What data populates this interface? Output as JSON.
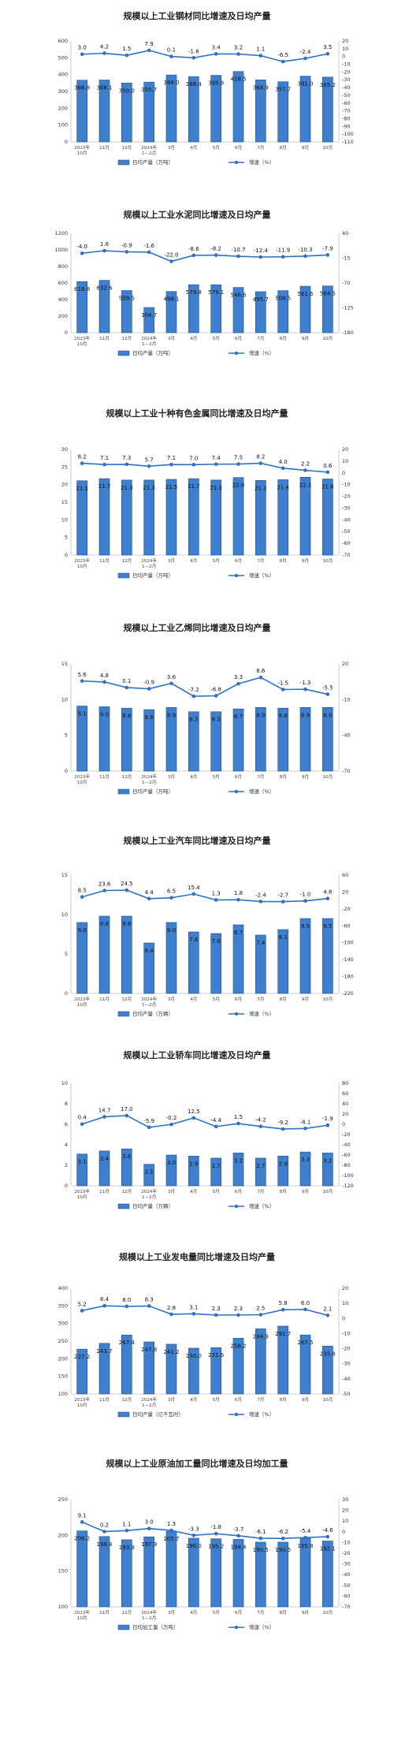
{
  "colors": {
    "bar_fill": "#3f7fcf",
    "bar_stroke": "#1a4f8f",
    "line": "#2f72c4",
    "axis": "#bfbfbf"
  },
  "categories": [
    "2023年\n10月",
    "11月",
    "12月",
    "2024年\n1—2月",
    "3月",
    "4月",
    "5月",
    "6月",
    "7月",
    "8月",
    "9月",
    "10月"
  ],
  "chart_data": [
    {
      "type": "bar",
      "title": "规模以上工业钢材同比增速及日均产量",
      "categories": [
        "2023年\n10月",
        "11月",
        "12月",
        "2024年\n1—2月",
        "3月",
        "4月",
        "5月",
        "6月",
        "7月",
        "8月",
        "9月",
        "10月"
      ],
      "series": [
        {
          "name": "日均产量（万吨）",
          "type": "bar",
          "axis": "left",
          "values": [
            366.8,
            368.1,
            350.0,
            355.7,
            398.0,
            388.4,
            395.8,
            418.5,
            368.9,
            357.7,
            391.0,
            385.2
          ]
        },
        {
          "name": "增速（%）",
          "type": "line",
          "axis": "right",
          "values": [
            3.0,
            4.2,
            1.5,
            7.9,
            0.1,
            -1.6,
            3.4,
            3.2,
            1.1,
            -6.5,
            -2.4,
            3.5
          ]
        }
      ],
      "left_ticks": [
        0,
        100,
        200,
        300,
        400,
        500,
        600
      ],
      "right_ticks": [
        20,
        10,
        0,
        -10,
        -20,
        -30,
        -40,
        -50,
        -60,
        -70,
        -80,
        -90,
        -100,
        -110
      ]
    },
    {
      "type": "bar",
      "title": "规模以上工业水泥同比增速及日均产量",
      "categories": [
        "2023年\n10月",
        "11月",
        "12月",
        "2024年\n1—2月",
        "3月",
        "4月",
        "5月",
        "6月",
        "7月",
        "8月",
        "9月",
        "10月"
      ],
      "series": [
        {
          "name": "日均产量（万吨）",
          "type": "bar",
          "axis": "left",
          "values": [
            616.8,
            632.6,
            509.5,
            304.7,
            498.1,
            579.8,
            579.1,
            546.6,
            495.7,
            508.5,
            561.6,
            564.5
          ]
        },
        {
          "name": "增速（%）",
          "type": "line",
          "axis": "right",
          "values": [
            -4.0,
            1.6,
            -0.9,
            -1.6,
            -22.0,
            -8.6,
            -8.2,
            -10.7,
            -12.4,
            -11.9,
            -10.3,
            -7.9
          ]
        }
      ],
      "left_ticks": [
        0,
        200,
        400,
        600,
        800,
        1000,
        1200
      ],
      "right_ticks": [
        40,
        -15,
        -70,
        -125,
        -180
      ]
    },
    {
      "type": "bar",
      "title": "规模以上工业十种有色金属同比增速及日均产量",
      "categories": [
        "2023年\n10月",
        "11月",
        "12月",
        "2024年\n1—2月",
        "3月",
        "4月",
        "5月",
        "6月",
        "7月",
        "8月",
        "9月",
        "10月"
      ],
      "series": [
        {
          "name": "日均产量（万吨）",
          "type": "bar",
          "axis": "left",
          "values": [
            21.1,
            21.7,
            21.3,
            21.3,
            21.5,
            21.7,
            21.3,
            22.0,
            21.2,
            21.4,
            22.1,
            21.6
          ]
        },
        {
          "name": "增速（%）",
          "type": "line",
          "axis": "right",
          "values": [
            8.2,
            7.1,
            7.3,
            5.7,
            7.1,
            7.0,
            7.4,
            7.5,
            8.2,
            4.0,
            2.2,
            0.6
          ]
        }
      ],
      "left_ticks": [
        0,
        5,
        10,
        15,
        20,
        25,
        30
      ],
      "right_ticks": [
        20,
        10,
        0,
        -10,
        -20,
        -30,
        -40,
        -50,
        -60,
        -70
      ]
    },
    {
      "type": "bar",
      "title": "规模以上工业乙烯同比增速及日均产量",
      "categories": [
        "2023年\n10月",
        "11月",
        "12月",
        "2024年\n1—2月",
        "3月",
        "4月",
        "5月",
        "6月",
        "7月",
        "8月",
        "9月",
        "10月"
      ],
      "series": [
        {
          "name": "日均产量（万吨）",
          "type": "bar",
          "axis": "left",
          "values": [
            9.1,
            9.0,
            8.8,
            8.6,
            8.9,
            8.3,
            8.3,
            8.7,
            8.9,
            8.8,
            8.9,
            8.9
          ]
        },
        {
          "name": "增速（%）",
          "type": "line",
          "axis": "right",
          "values": [
            5.6,
            4.8,
            0.1,
            -0.9,
            3.6,
            -7.2,
            -6.8,
            3.3,
            8.6,
            -1.5,
            -1.3,
            -5.5
          ]
        }
      ],
      "left_ticks": [
        0,
        5,
        10,
        15
      ],
      "right_ticks": [
        20,
        -10,
        -40,
        -70
      ]
    },
    {
      "type": "bar",
      "title": "规模以上工业汽车同比增速及日均产量",
      "categories": [
        "2023年\n10月",
        "11月",
        "12月",
        "2024年\n1—2月",
        "3月",
        "4月",
        "5月",
        "6月",
        "7月",
        "8月",
        "9月",
        "10月"
      ],
      "series": [
        {
          "name": "日均产量（万辆）",
          "type": "bar",
          "axis": "left",
          "values": [
            9.0,
            9.8,
            9.8,
            6.4,
            9.0,
            7.8,
            7.6,
            8.7,
            7.4,
            8.1,
            9.5,
            9.5
          ]
        },
        {
          "name": "增速（%）",
          "type": "line",
          "axis": "right",
          "values": [
            8.5,
            23.6,
            24.5,
            4.4,
            6.5,
            15.4,
            1.3,
            1.8,
            -2.4,
            -2.7,
            -1.0,
            4.8
          ]
        }
      ],
      "left_ticks": [
        0,
        5,
        10,
        15
      ],
      "right_ticks": [
        60,
        20,
        -20,
        -60,
        -100,
        -140,
        -180,
        -220
      ]
    },
    {
      "type": "bar",
      "title": "规模以上工业轿车同比增速及日均产量",
      "categories": [
        "2023年\n10月",
        "11月",
        "12月",
        "2024年\n1—2月",
        "3月",
        "4月",
        "5月",
        "6月",
        "7月",
        "8月",
        "9月",
        "10月"
      ],
      "series": [
        {
          "name": "日均产量（万辆）",
          "type": "bar",
          "axis": "left",
          "values": [
            3.1,
            3.4,
            3.6,
            2.1,
            3.0,
            2.9,
            2.7,
            3.2,
            2.7,
            2.9,
            3.3,
            3.2
          ]
        },
        {
          "name": "增速（%）",
          "type": "line",
          "axis": "right",
          "values": [
            0.4,
            14.7,
            17.0,
            -5.9,
            -0.2,
            12.5,
            -4.4,
            1.5,
            -4.2,
            -9.2,
            -8.1,
            -1.9
          ]
        }
      ],
      "left_ticks": [
        0,
        2,
        4,
        6,
        8,
        10
      ],
      "right_ticks": [
        80,
        60,
        40,
        20,
        0,
        -20,
        -40,
        -60,
        -80,
        -100,
        -120
      ]
    },
    {
      "type": "bar",
      "title": "规模以上工业发电量同比增速及日均产量",
      "categories": [
        "2023年\n10月",
        "11月",
        "12月",
        "2024年\n1—2月",
        "3月",
        "4月",
        "5月",
        "6月",
        "7月",
        "8月",
        "9月",
        "10月"
      ],
      "series": [
        {
          "name": "日均产量（亿千瓦时）",
          "type": "bar",
          "axis": "left",
          "values": [
            227.2,
            243.7,
            267.4,
            247.8,
            241.2,
            230.0,
            231.6,
            258.2,
            284.9,
            292.7,
            267.5,
            235.8
          ]
        },
        {
          "name": "增速（%）",
          "type": "line",
          "axis": "right",
          "values": [
            5.2,
            8.4,
            8.0,
            8.3,
            2.8,
            3.1,
            2.3,
            2.3,
            2.5,
            5.8,
            6.0,
            2.1
          ]
        }
      ],
      "left_ticks": [
        100,
        150,
        200,
        250,
        300,
        350,
        400
      ],
      "right_ticks": [
        20,
        10,
        0,
        -10,
        -20,
        -30,
        -40,
        -50
      ]
    },
    {
      "type": "bar",
      "title": "规模以上工业原油加工量同比增速及日均加工量",
      "categories": [
        "2023年\n10月",
        "11月",
        "12月",
        "2024年\n1—2月",
        "3月",
        "4月",
        "5月",
        "6月",
        "7月",
        "8月",
        "9月",
        "10月"
      ],
      "series": [
        {
          "name": "日均加工量（万吨）",
          "type": "bar",
          "axis": "left",
          "values": [
            206.2,
            198.4,
            193.9,
            197.9,
            205.7,
            196.0,
            195.2,
            194.4,
            190.5,
            190.5,
            195.8,
            192.1
          ]
        },
        {
          "name": "增速（%）",
          "type": "line",
          "axis": "right",
          "values": [
            9.1,
            0.2,
            1.1,
            3.0,
            1.3,
            -3.3,
            -1.8,
            -3.7,
            -6.1,
            -6.2,
            -5.4,
            -4.6
          ]
        }
      ],
      "left_ticks": [
        100,
        150,
        200,
        250
      ],
      "right_ticks": [
        30,
        20,
        10,
        0,
        -10,
        -20,
        -30,
        -40,
        -50,
        -60,
        -70
      ]
    }
  ]
}
